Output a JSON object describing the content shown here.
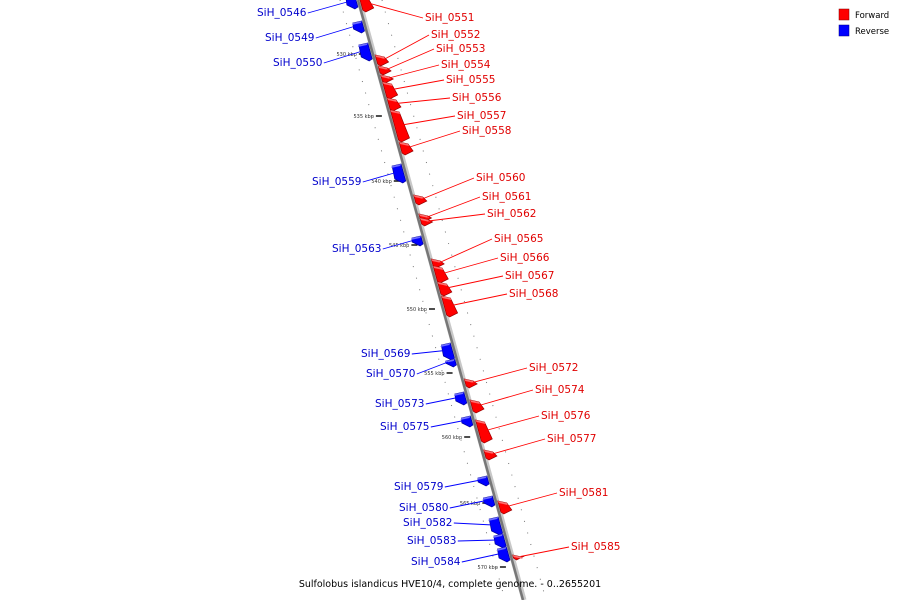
{
  "caption": "Sulfolobus islandicus HVE10/4, complete genome. - 0..2655201",
  "legend": [
    {
      "label": "Forward",
      "color": "#ff0000"
    },
    {
      "label": "Reverse",
      "color": "#0000ff"
    }
  ],
  "axis": {
    "start_kbp": 528,
    "end_kbp": 572
  },
  "ticks": [
    "530 kbp",
    "535 kbp",
    "540 kbp",
    "545 kbp",
    "550 kbp",
    "555 kbp",
    "560 kbp",
    "565 kbp",
    "570 kbp"
  ],
  "genes": [
    {
      "name": "SiH_0546",
      "strand": "reverse"
    },
    {
      "name": "SiH_0549",
      "strand": "reverse"
    },
    {
      "name": "SiH_0550",
      "strand": "reverse"
    },
    {
      "name": "SiH_0551",
      "strand": "forward"
    },
    {
      "name": "SiH_0552",
      "strand": "forward"
    },
    {
      "name": "SiH_0553",
      "strand": "forward"
    },
    {
      "name": "SiH_0554",
      "strand": "forward"
    },
    {
      "name": "SiH_0555",
      "strand": "forward"
    },
    {
      "name": "SiH_0556",
      "strand": "forward"
    },
    {
      "name": "SiH_0557",
      "strand": "forward"
    },
    {
      "name": "SiH_0558",
      "strand": "forward"
    },
    {
      "name": "SiH_0559",
      "strand": "reverse"
    },
    {
      "name": "SiH_0560",
      "strand": "forward"
    },
    {
      "name": "SiH_0561",
      "strand": "forward"
    },
    {
      "name": "SiH_0562",
      "strand": "forward"
    },
    {
      "name": "SiH_0563",
      "strand": "reverse"
    },
    {
      "name": "SiH_0565",
      "strand": "forward"
    },
    {
      "name": "SiH_0566",
      "strand": "forward"
    },
    {
      "name": "SiH_0567",
      "strand": "forward"
    },
    {
      "name": "SiH_0568",
      "strand": "forward"
    },
    {
      "name": "SiH_0569",
      "strand": "reverse"
    },
    {
      "name": "SiH_0570",
      "strand": "reverse"
    },
    {
      "name": "SiH_0572",
      "strand": "forward"
    },
    {
      "name": "SiH_0573",
      "strand": "reverse"
    },
    {
      "name": "SiH_0574",
      "strand": "forward"
    },
    {
      "name": "SiH_0575",
      "strand": "reverse"
    },
    {
      "name": "SiH_0576",
      "strand": "forward"
    },
    {
      "name": "SiH_0577",
      "strand": "forward"
    },
    {
      "name": "SiH_0579",
      "strand": "reverse"
    },
    {
      "name": "SiH_0580",
      "strand": "reverse"
    },
    {
      "name": "SiH_0581",
      "strand": "forward"
    },
    {
      "name": "SiH_0582",
      "strand": "reverse"
    },
    {
      "name": "SiH_0583",
      "strand": "reverse"
    },
    {
      "name": "SiH_0584",
      "strand": "reverse"
    },
    {
      "name": "SiH_0585",
      "strand": "forward"
    }
  ]
}
